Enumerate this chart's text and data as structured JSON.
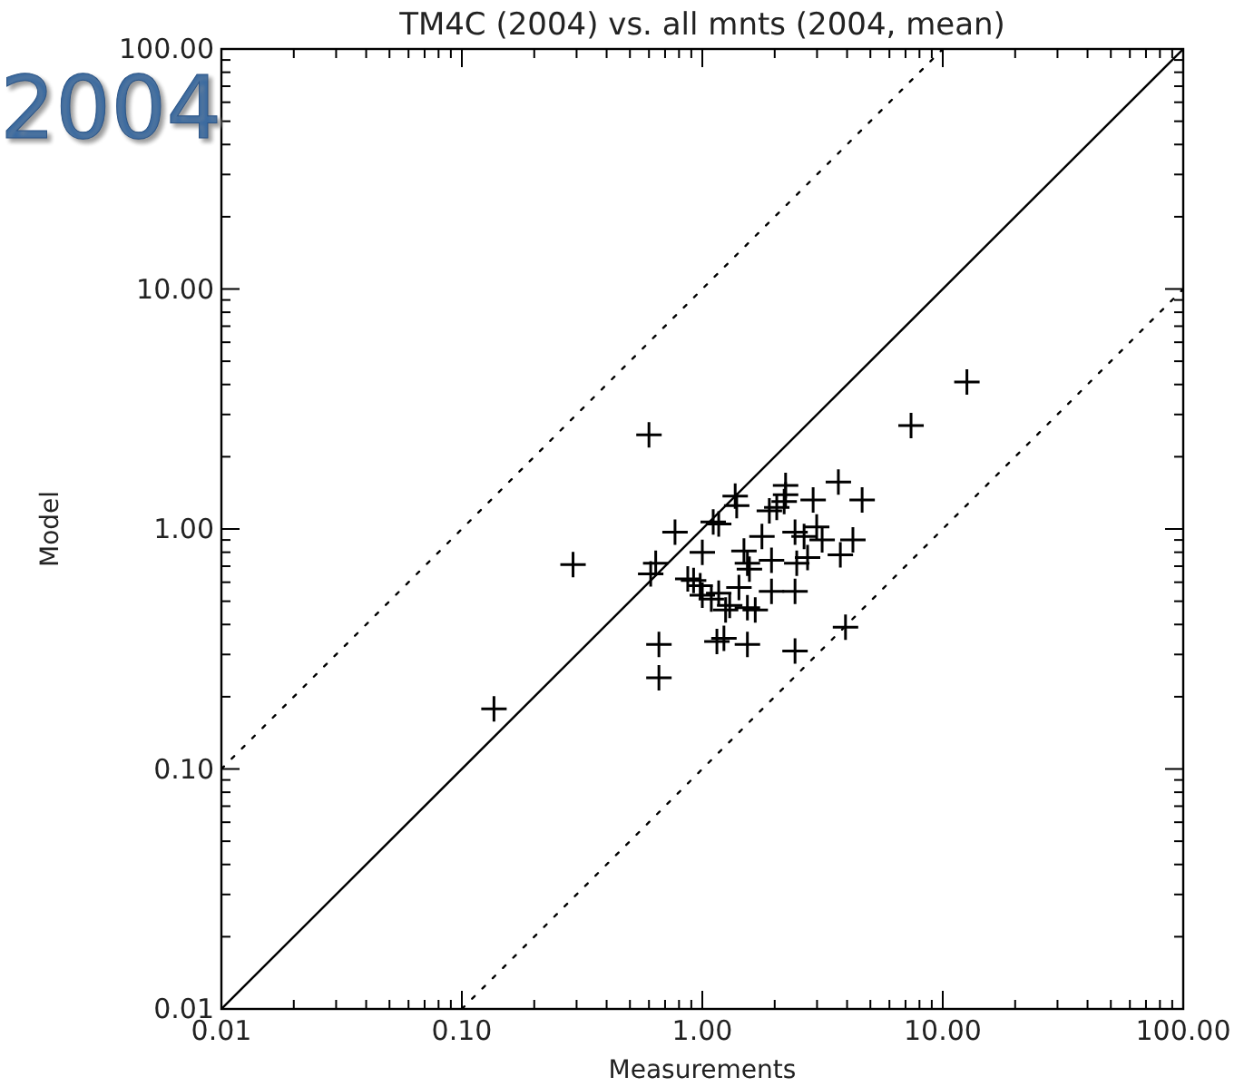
{
  "chart_data": {
    "type": "scatter",
    "title": "TM4C (2004) vs. all mnts (2004, mean)",
    "xlabel": "Measurements",
    "ylabel": "Model",
    "annotations": [
      "2004"
    ],
    "log": "xy",
    "grid": false,
    "xlim": [
      0.01,
      100
    ],
    "ylim": [
      0.01,
      100
    ],
    "xticks": [
      {
        "value": 0.01,
        "label": "0.01"
      },
      {
        "value": 0.02,
        "label": null
      },
      {
        "value": 0.03,
        "label": null
      },
      {
        "value": 0.04,
        "label": null
      },
      {
        "value": 0.05,
        "label": null
      },
      {
        "value": 0.06,
        "label": null
      },
      {
        "value": 0.07,
        "label": null
      },
      {
        "value": 0.08,
        "label": null
      },
      {
        "value": 0.09,
        "label": null
      },
      {
        "value": 0.1,
        "label": "0.10"
      },
      {
        "value": 0.2,
        "label": null
      },
      {
        "value": 0.3,
        "label": null
      },
      {
        "value": 0.4,
        "label": null
      },
      {
        "value": 0.5,
        "label": null
      },
      {
        "value": 0.6,
        "label": null
      },
      {
        "value": 0.7,
        "label": null
      },
      {
        "value": 0.8,
        "label": null
      },
      {
        "value": 0.9,
        "label": null
      },
      {
        "value": 1,
        "label": "1.00"
      },
      {
        "value": 2,
        "label": null
      },
      {
        "value": 3,
        "label": null
      },
      {
        "value": 4,
        "label": null
      },
      {
        "value": 5,
        "label": null
      },
      {
        "value": 6,
        "label": null
      },
      {
        "value": 7,
        "label": null
      },
      {
        "value": 8,
        "label": null
      },
      {
        "value": 9,
        "label": null
      },
      {
        "value": 10,
        "label": "10.00"
      },
      {
        "value": 20,
        "label": null
      },
      {
        "value": 30,
        "label": null
      },
      {
        "value": 40,
        "label": null
      },
      {
        "value": 50,
        "label": null
      },
      {
        "value": 60,
        "label": null
      },
      {
        "value": 70,
        "label": null
      },
      {
        "value": 80,
        "label": null
      },
      {
        "value": 90,
        "label": null
      },
      {
        "value": 100,
        "label": "100.00"
      }
    ],
    "yticks": [
      {
        "value": 0.01,
        "label": "0.01"
      },
      {
        "value": 0.02,
        "label": null
      },
      {
        "value": 0.03,
        "label": null
      },
      {
        "value": 0.04,
        "label": null
      },
      {
        "value": 0.05,
        "label": null
      },
      {
        "value": 0.06,
        "label": null
      },
      {
        "value": 0.07,
        "label": null
      },
      {
        "value": 0.08,
        "label": null
      },
      {
        "value": 0.09,
        "label": null
      },
      {
        "value": 0.1,
        "label": "0.10"
      },
      {
        "value": 0.2,
        "label": null
      },
      {
        "value": 0.3,
        "label": null
      },
      {
        "value": 0.4,
        "label": null
      },
      {
        "value": 0.5,
        "label": null
      },
      {
        "value": 0.6,
        "label": null
      },
      {
        "value": 0.7,
        "label": null
      },
      {
        "value": 0.8,
        "label": null
      },
      {
        "value": 0.9,
        "label": null
      },
      {
        "value": 1,
        "label": "1.00"
      },
      {
        "value": 2,
        "label": null
      },
      {
        "value": 3,
        "label": null
      },
      {
        "value": 4,
        "label": null
      },
      {
        "value": 5,
        "label": null
      },
      {
        "value": 6,
        "label": null
      },
      {
        "value": 7,
        "label": null
      },
      {
        "value": 8,
        "label": null
      },
      {
        "value": 9,
        "label": null
      },
      {
        "value": 10,
        "label": "10.00"
      },
      {
        "value": 20,
        "label": null
      },
      {
        "value": 30,
        "label": null
      },
      {
        "value": 40,
        "label": null
      },
      {
        "value": 50,
        "label": null
      },
      {
        "value": 60,
        "label": null
      },
      {
        "value": 70,
        "label": null
      },
      {
        "value": 80,
        "label": null
      },
      {
        "value": 90,
        "label": null
      },
      {
        "value": 100,
        "label": "100.00"
      }
    ],
    "series": [
      {
        "marker": "cross",
        "color": "#000000",
        "x": [
          0.136,
          0.29,
          0.6,
          0.64,
          0.61,
          0.66,
          0.66,
          0.77,
          1.0,
          0.87,
          0.92,
          0.98,
          1.0,
          1.09,
          1.17,
          1.25,
          1.3,
          1.42,
          1.54,
          1.66,
          1.15,
          1.23,
          1.54,
          1.11,
          1.17,
          1.37,
          1.39,
          1.49,
          1.54,
          1.57,
          1.77,
          1.94,
          1.94,
          1.9,
          2.04,
          2.19,
          2.22,
          2.22,
          2.43,
          2.47,
          2.43,
          2.65,
          2.74,
          2.89,
          2.99,
          3.15,
          3.75,
          4.23,
          3.68,
          4.62,
          2.43,
          3.94,
          7.38,
          12.6
        ],
        "values": [
          0.178,
          0.71,
          2.47,
          0.72,
          0.65,
          0.33,
          0.24,
          0.97,
          0.8,
          0.62,
          0.61,
          0.58,
          0.53,
          0.51,
          0.54,
          0.46,
          0.48,
          0.57,
          0.47,
          0.46,
          0.34,
          0.35,
          0.33,
          1.07,
          1.05,
          1.37,
          1.25,
          0.81,
          0.72,
          0.68,
          0.93,
          0.74,
          0.55,
          1.19,
          1.23,
          1.3,
          1.52,
          1.39,
          0.55,
          0.72,
          0.97,
          0.93,
          0.76,
          1.32,
          1.02,
          0.9,
          0.78,
          0.9,
          1.57,
          1.32,
          0.31,
          0.39,
          2.7,
          4.1
        ]
      },
      {
        "type": "line",
        "color": "#000000",
        "line_style": "solid",
        "marker": "none",
        "x": [
          0.01,
          100
        ],
        "values": [
          0.01,
          100
        ]
      },
      {
        "type": "line",
        "color": "#000000",
        "line_style": "dotted",
        "marker": "none",
        "x": [
          0.01,
          10
        ],
        "values": [
          0.1,
          100
        ]
      },
      {
        "type": "line",
        "color": "#000000",
        "line_style": "dotted",
        "marker": "none",
        "x": [
          0.1,
          100
        ],
        "values": [
          0.01,
          10
        ]
      }
    ]
  }
}
